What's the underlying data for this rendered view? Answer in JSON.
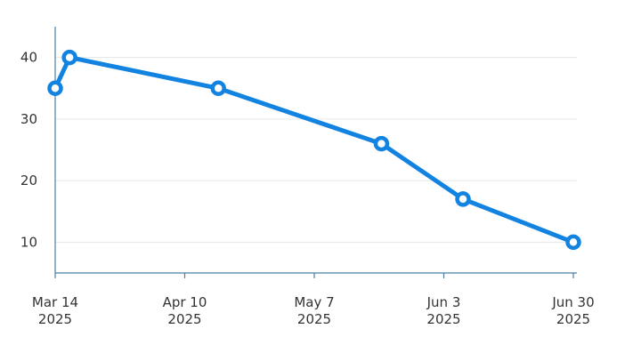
{
  "chart_data": {
    "type": "line",
    "title": "",
    "xlabel": "",
    "ylabel": "",
    "x_axis": {
      "type": "date",
      "range": [
        "2025-03-14",
        "2025-06-30"
      ],
      "ticks": [
        {
          "date": "2025-03-14",
          "line1": "Mar 14",
          "line2": "2025"
        },
        {
          "date": "2025-04-10",
          "line1": "Apr 10",
          "line2": "2025"
        },
        {
          "date": "2025-05-07",
          "line1": "May 7",
          "line2": "2025"
        },
        {
          "date": "2025-06-03",
          "line1": "Jun 3",
          "line2": "2025"
        },
        {
          "date": "2025-06-30",
          "line1": "Jun 30",
          "line2": "2025"
        }
      ]
    },
    "y_axis": {
      "range": [
        5,
        45
      ],
      "ticks": [
        10,
        20,
        30,
        40
      ],
      "tick_labels": [
        "10",
        "20",
        "30",
        "40"
      ],
      "grid": true
    },
    "series": [
      {
        "color": "#1283e0",
        "points": [
          {
            "x": "2025-03-14",
            "y": 35
          },
          {
            "x": "2025-03-17",
            "y": 40
          },
          {
            "x": "2025-04-17",
            "y": 35
          },
          {
            "x": "2025-05-21",
            "y": 26
          },
          {
            "x": "2025-06-07",
            "y": 17
          },
          {
            "x": "2025-06-30",
            "y": 10
          }
        ]
      }
    ],
    "legend": "none"
  },
  "colors": {
    "line": "#1283e0",
    "axis": "#4a7fa6",
    "grid": "#e6e6e6",
    "marker_fill": "#ffffff"
  }
}
